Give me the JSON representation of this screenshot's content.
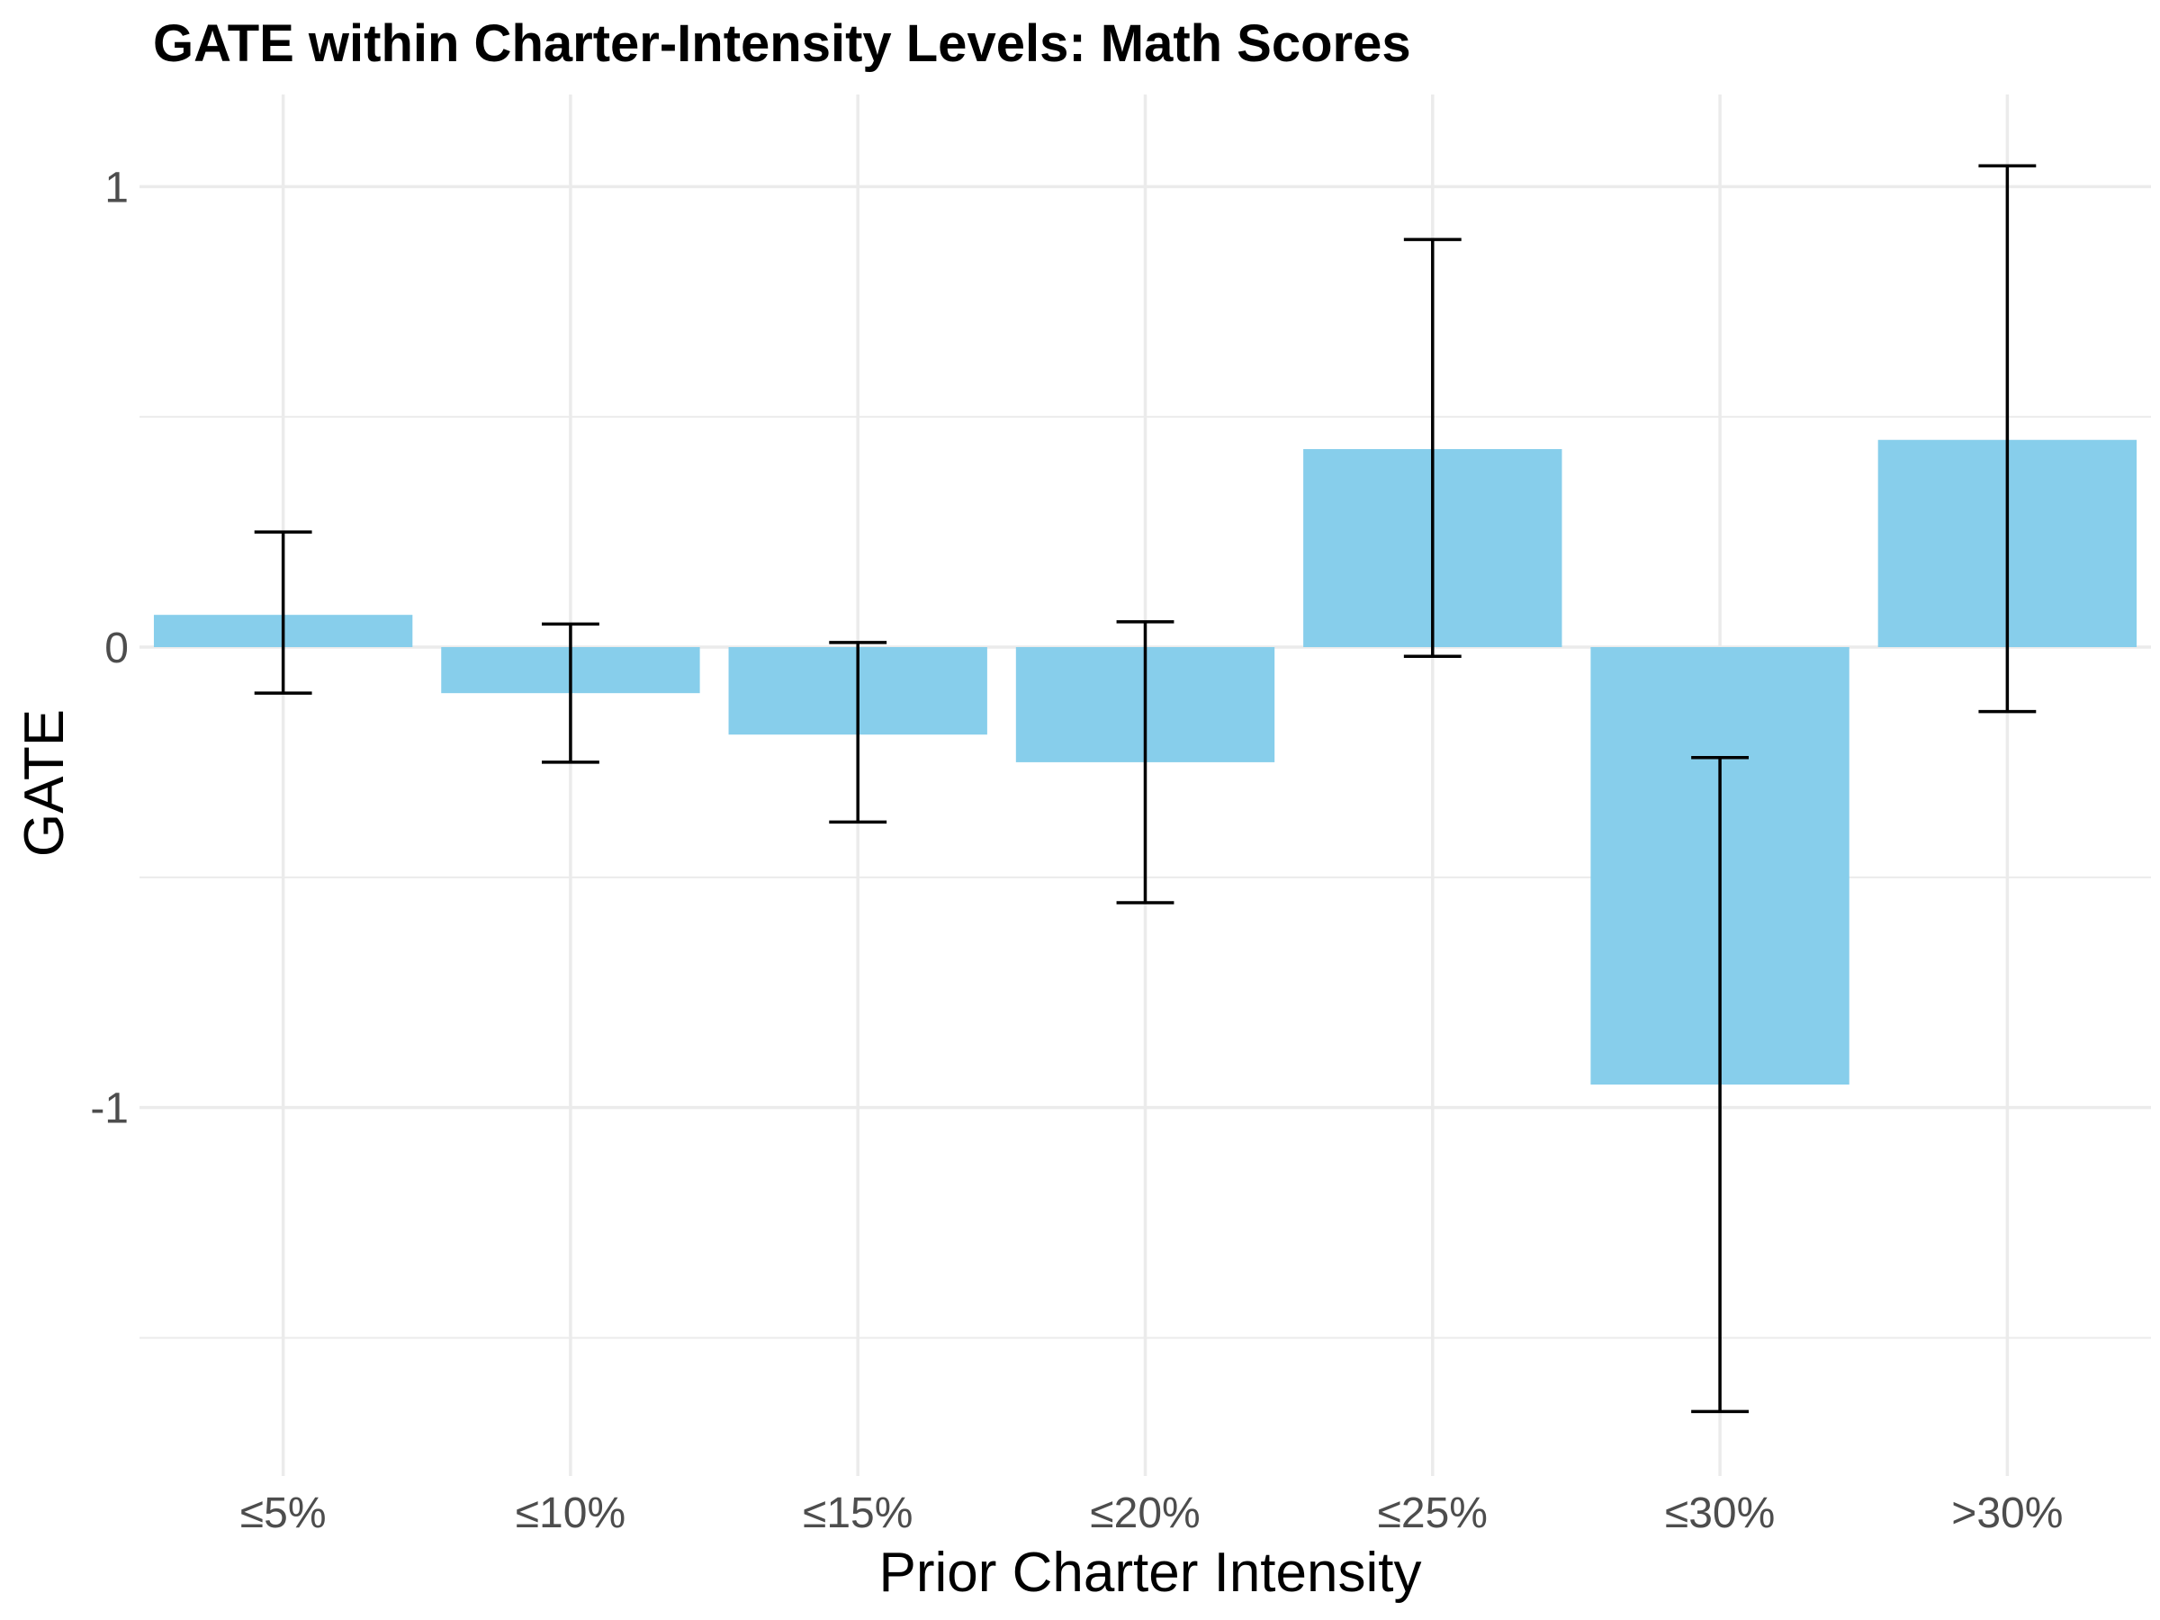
{
  "chart_data": {
    "type": "bar",
    "title": "GATE within Charter-Intensity Levels: Math Scores",
    "xlabel": "Prior Charter Intensity",
    "ylabel": "GATE",
    "categories": [
      "≤5%",
      "≤10%",
      "≤15%",
      "≤20%",
      "≤25%",
      "≤30%",
      ">30%"
    ],
    "values": [
      0.07,
      -0.1,
      -0.19,
      -0.25,
      0.43,
      -0.95,
      0.45
    ],
    "error_low": [
      -0.1,
      -0.25,
      -0.38,
      -0.555,
      -0.02,
      -1.66,
      -0.14
    ],
    "error_high": [
      0.25,
      0.05,
      0.01,
      0.055,
      0.885,
      -0.24,
      1.045
    ],
    "ylim": [
      -1.8,
      1.2
    ],
    "yticks": [
      -1,
      0,
      1
    ],
    "ytick_labels": [
      "-1",
      "0",
      "1"
    ],
    "bar_color": "#87ceeb",
    "errorbar_color": "#000000",
    "grid": true,
    "legend": "none"
  }
}
